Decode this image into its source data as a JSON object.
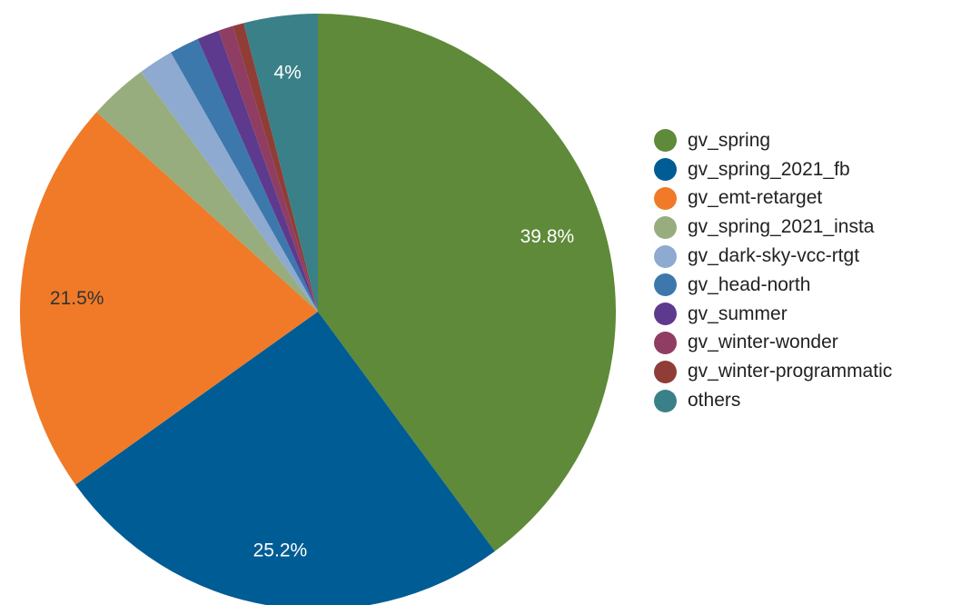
{
  "chart_data": {
    "type": "pie",
    "start": "top",
    "direction": "clockwise",
    "slices": [
      {
        "name": "gv_spring",
        "value": 39.8,
        "label": "39.8%",
        "color": "#5e8a3a"
      },
      {
        "name": "gv_spring_2021_fb",
        "value": 25.2,
        "label": "25.2%",
        "color": "#005c94"
      },
      {
        "name": "gv_emt-retarget",
        "value": 21.5,
        "label": "21.5%",
        "color": "#f07a28"
      },
      {
        "name": "gv_spring_2021_insta",
        "value": 3.2,
        "label": "",
        "color": "#97ad7e"
      },
      {
        "name": "gv_dark-sky-vcc-rtgt",
        "value": 1.9,
        "label": "",
        "color": "#8eaad0"
      },
      {
        "name": "gv_head-north",
        "value": 1.6,
        "label": "",
        "color": "#3d78ad"
      },
      {
        "name": "gv_summer",
        "value": 1.2,
        "label": "",
        "color": "#5e3a8e"
      },
      {
        "name": "gv_winter-wonder",
        "value": 0.8,
        "label": "",
        "color": "#8f3d62"
      },
      {
        "name": "gv_winter-programmatic",
        "value": 0.6,
        "label": "",
        "color": "#8f3d36"
      },
      {
        "name": "others",
        "value": 4.0,
        "label": "4%",
        "color": "#3a8088"
      }
    ],
    "legend_position": "right"
  }
}
